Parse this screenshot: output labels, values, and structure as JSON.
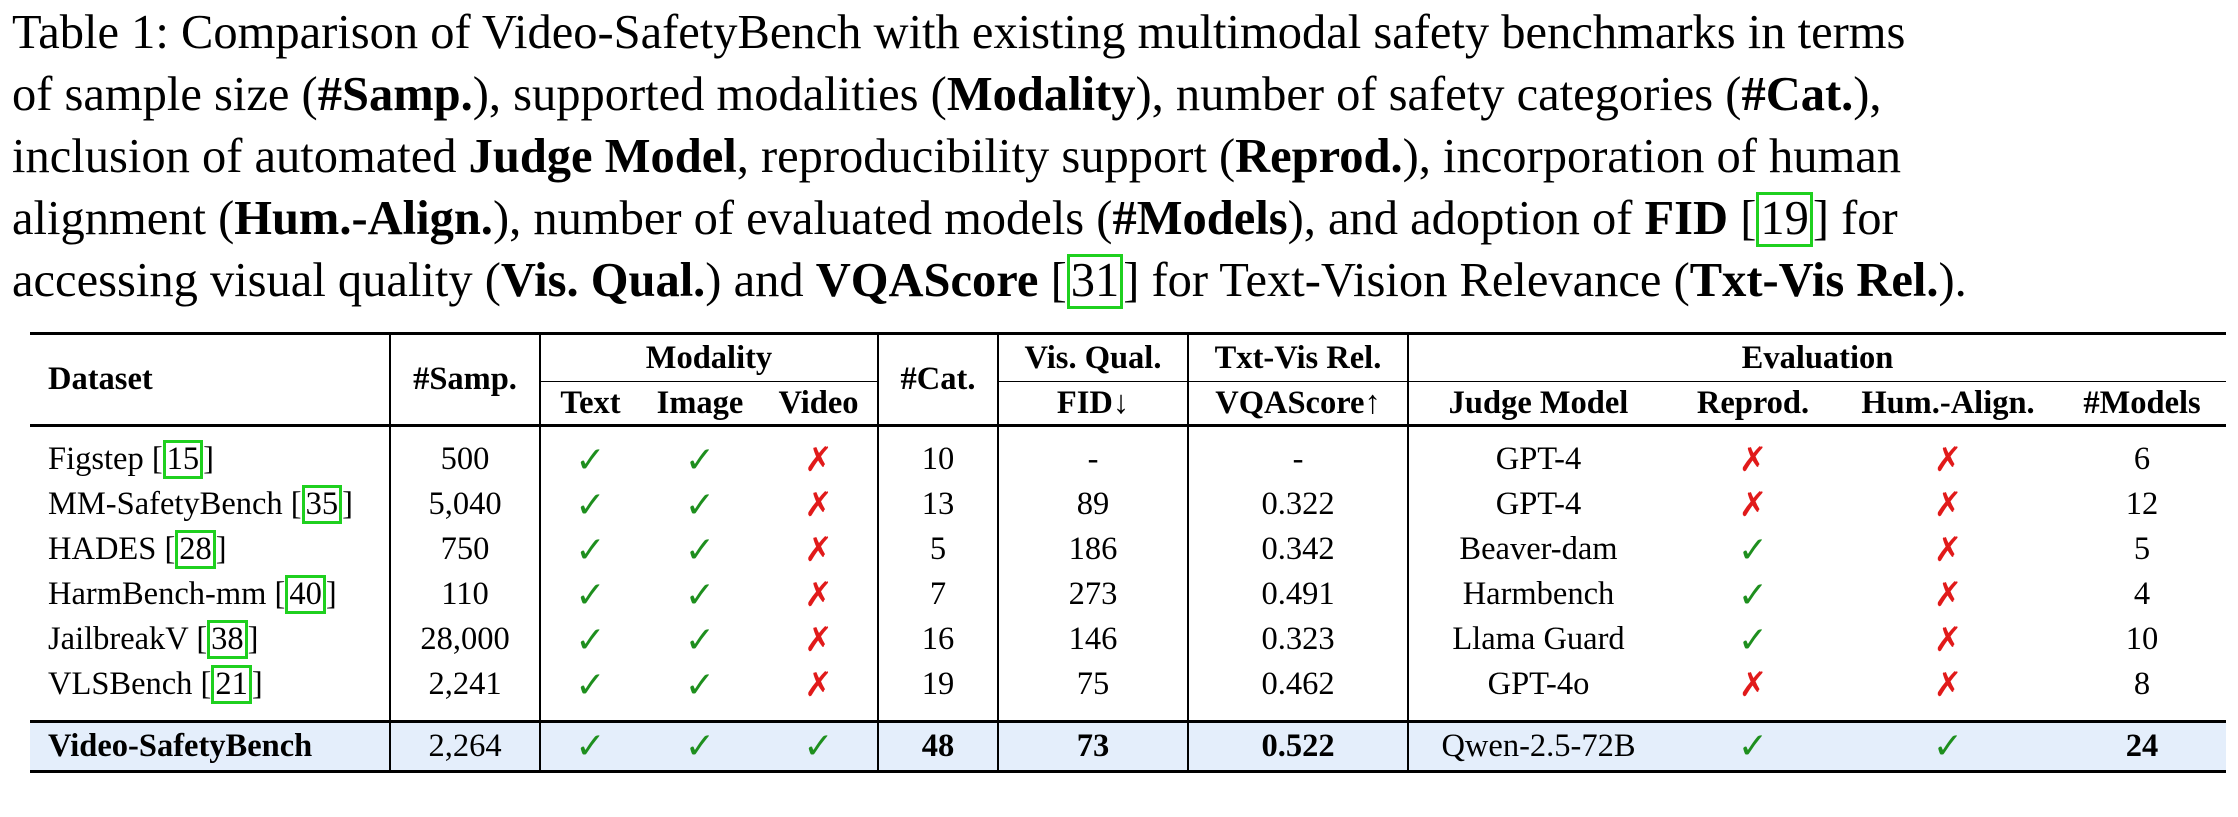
{
  "caption": {
    "line1": "Table 1: Comparison of Video-SafetyBench with existing multimodal safety benchmarks in terms",
    "line2_a": "of sample size (",
    "line2_b": "#Samp.",
    "line2_c": "), supported modalities (",
    "line2_d": "Modality",
    "line2_e": "), number of safety categories (",
    "line2_f": "#Cat.",
    "line2_g": "),",
    "line3_a": "inclusion of automated ",
    "line3_b": "Judge Model",
    "line3_c": ", reproducibility support (",
    "line3_d": "Reprod.",
    "line3_e": "), incorporation of human",
    "line4_a": "alignment (",
    "line4_b": "Hum.-Align.",
    "line4_c": "), number of evaluated models (",
    "line4_d": "#Models",
    "line4_e": "), and adoption of ",
    "line4_f": "FID",
    "line4_g": " [",
    "line4_h": "19",
    "line4_i": "] for",
    "line5_a": "accessing visual quality (",
    "line5_b": "Vis. Qual.",
    "line5_c": ") and ",
    "line5_d": "VQAScore",
    "line5_e": " [",
    "line5_f": "31",
    "line5_g": "] for Text-Vision Relevance (",
    "line5_h": "Txt-Vis Rel.",
    "line5_i": ")."
  },
  "header": {
    "dataset": "Dataset",
    "samp": "#Samp.",
    "modality": "Modality",
    "text": "Text",
    "image": "Image",
    "video": "Video",
    "cat": "#Cat.",
    "visqual": "Vis. Qual.",
    "fid": "FID↓",
    "txtvis": "Txt-Vis Rel.",
    "vqascore": "VQAScore↑",
    "evaluation": "Evaluation",
    "judge": "Judge Model",
    "reprod": "Reprod.",
    "humalign": "Hum.-Align.",
    "models": "#Models"
  },
  "symbols": {
    "check": "✓",
    "cross": "✗"
  },
  "rows": [
    {
      "name": "Figstep [",
      "cite": "15",
      "samp": "500",
      "cat": "10",
      "fid": "-",
      "vqa": "-",
      "judge": "GPT-4",
      "models": "6"
    },
    {
      "name": "MM-SafetyBench [",
      "cite": "35",
      "samp": "5,040",
      "cat": "13",
      "fid": "89",
      "vqa": "0.322",
      "judge": "GPT-4",
      "models": "12"
    },
    {
      "name": "HADES [",
      "cite": "28",
      "samp": "750",
      "cat": "5",
      "fid": "186",
      "vqa": "0.342",
      "judge": "Beaver-dam",
      "models": "5"
    },
    {
      "name": "HarmBench-mm [",
      "cite": "40",
      "samp": "110",
      "cat": "7",
      "fid": "273",
      "vqa": "0.491",
      "judge": "Harmbench",
      "models": "4"
    },
    {
      "name": "JailbreakV [",
      "cite": "38",
      "samp": "28,000",
      "cat": "16",
      "fid": "146",
      "vqa": "0.323",
      "judge": "Llama Guard",
      "models": "10"
    },
    {
      "name": "VLSBench [",
      "cite": "21",
      "samp": "2,241",
      "cat": "19",
      "fid": "75",
      "vqa": "0.462",
      "judge": "GPT-4o",
      "models": "8"
    }
  ],
  "ours": {
    "name": "Video-SafetyBench",
    "samp": "2,264",
    "cat": "48",
    "fid": "73",
    "vqa": "0.522",
    "judge": "Qwen-2.5-72B",
    "models": "24"
  }
}
